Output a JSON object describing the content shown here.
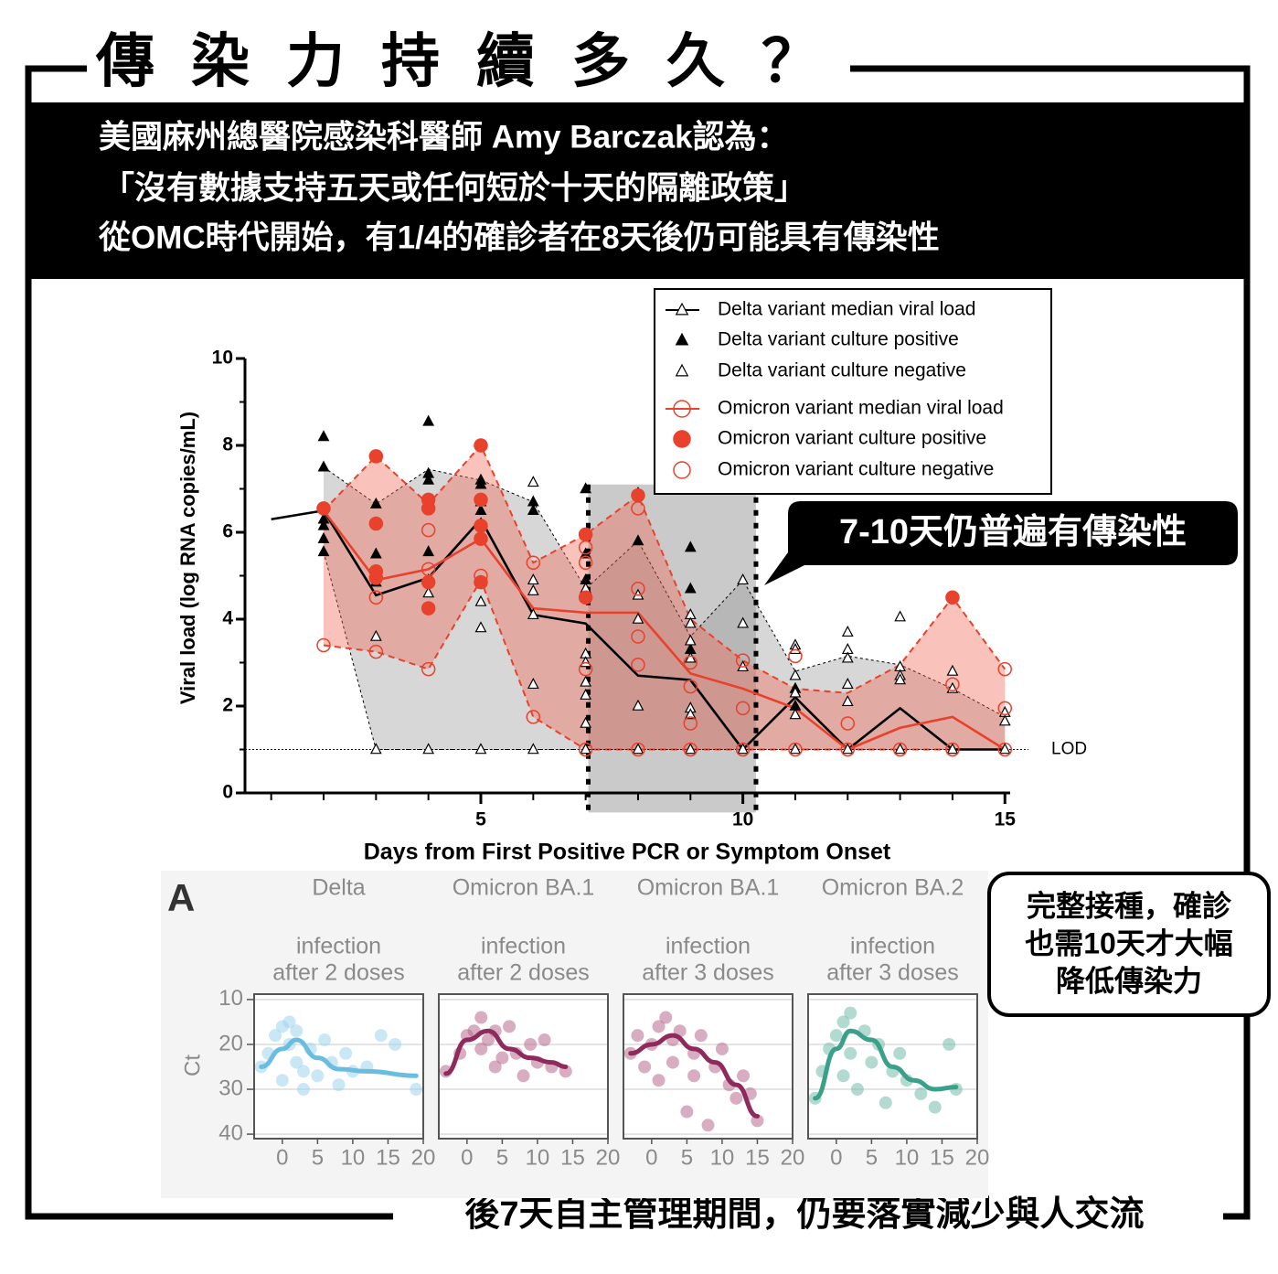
{
  "header": {
    "title": "傳染力持續多久？",
    "lines": [
      "美國麻州總醫院感染科醫師 Amy Barczak認為：",
      "「沒有數據支持五天或任何短於十天的隔離政策」",
      "從OMC時代開始，有1/4的確診者在8天後仍可能具有傳染性"
    ]
  },
  "callouts": {
    "main": "7-10天仍普遍有傳染性",
    "side": [
      "完整接種，確診",
      "也需10天才大幅",
      "降低傳染力"
    ]
  },
  "footer": "後7天自主管理期間，仍要落實減少與人交流",
  "chart_data": [
    {
      "type": "line",
      "xlabel": "Days from First Positive PCR or Symptom Onset",
      "ylabel": "Viral load (log RNA copies/mL)",
      "xlim": [
        0.5,
        15.1
      ],
      "ylim": [
        0,
        10
      ],
      "xticks": [
        5,
        10,
        15
      ],
      "xminorticks": [
        1,
        2,
        3,
        4,
        5,
        6,
        7,
        8,
        9,
        10,
        11,
        12,
        13,
        14,
        15
      ],
      "yticks": [
        0,
        2,
        4,
        6,
        8,
        10
      ],
      "yminorticks": [
        1,
        3,
        5,
        7,
        9
      ],
      "lod": {
        "value": 1,
        "label": "LOD"
      },
      "highlight": {
        "xlim": [
          7.05,
          10.25
        ],
        "ylim": [
          -0.45,
          7.1
        ],
        "color": "#8a8a8a"
      },
      "bands": [
        {
          "color": "#9a9a9a",
          "edge": "#000000",
          "x": [
            2,
            3,
            4,
            5,
            6,
            7,
            8,
            9,
            10,
            11,
            12,
            13,
            14,
            15
          ],
          "upper": [
            7.5,
            6.65,
            7.45,
            7.2,
            6.7,
            4.7,
            5.8,
            3.6,
            4.9,
            2.8,
            3.15,
            2.95,
            2.4,
            1.75
          ],
          "lower": [
            5.55,
            1,
            1,
            1,
            1,
            1,
            1,
            1,
            1,
            1,
            1,
            1,
            1,
            1
          ]
        },
        {
          "color": "#ef6a55",
          "edge": "#e8412c",
          "x": [
            2,
            3,
            4,
            5,
            6,
            7,
            8,
            9,
            10,
            11,
            12,
            13,
            14,
            15
          ],
          "upper": [
            6.5,
            7.75,
            6.65,
            8.0,
            5.3,
            5.95,
            6.85,
            4.0,
            3.05,
            2.4,
            2.3,
            2.95,
            4.5,
            2.85
          ],
          "lower": [
            3.4,
            3.25,
            2.85,
            4.9,
            1.75,
            1,
            1,
            1,
            1,
            1,
            1,
            1,
            1,
            1
          ]
        }
      ],
      "series": [
        {
          "name": "Delta variant median viral load",
          "style": "line",
          "marker": "triangle-open",
          "color": "#000000",
          "x": [
            1,
            2,
            3,
            4,
            5,
            6,
            7,
            8,
            9,
            10,
            11,
            12,
            13,
            14,
            15
          ],
          "values": [
            6.3,
            6.5,
            4.55,
            4.95,
            6.3,
            4.1,
            3.9,
            2.7,
            2.6,
            1,
            2.2,
            1,
            1.95,
            1,
            1
          ]
        },
        {
          "name": "Delta variant culture positive",
          "style": "points",
          "marker": "triangle-filled",
          "color": "#000000",
          "x": [
            2,
            2,
            2,
            2,
            2,
            2,
            3,
            3,
            3,
            4,
            4,
            4,
            4,
            4,
            5,
            5,
            5,
            5,
            6,
            6,
            7,
            7,
            7,
            7,
            7,
            8,
            8,
            9,
            9,
            9,
            11,
            11
          ],
          "values": [
            8.2,
            7.5,
            6.3,
            6.15,
            5.85,
            5.55,
            6.65,
            5.5,
            4.85,
            8.55,
            7.35,
            7.2,
            5.55,
            4.9,
            7.2,
            7.1,
            6.7,
            6.5,
            6.7,
            6.5,
            7.0,
            5.95,
            5.5,
            4.9,
            4.5,
            6.9,
            5.8,
            5.65,
            4.7,
            3.3,
            2.4,
            2.0
          ]
        },
        {
          "name": "Delta variant culture negative",
          "style": "points",
          "marker": "triangle-open",
          "color": "#000000",
          "x": [
            3,
            3,
            4,
            4,
            5,
            5,
            5,
            6,
            6,
            6,
            6,
            6,
            6,
            7,
            7,
            7,
            7,
            7,
            7,
            7,
            8,
            8,
            8,
            8,
            9,
            9,
            9,
            9,
            9,
            9,
            9,
            10,
            10,
            10,
            10,
            11,
            11,
            11,
            11,
            11,
            11,
            12,
            12,
            12,
            12,
            12,
            12,
            13,
            13,
            13,
            13,
            13,
            14,
            14,
            14,
            15,
            15,
            15
          ],
          "values": [
            3.6,
            1,
            4.6,
            1,
            4.4,
            3.8,
            1,
            7.15,
            4.9,
            4.65,
            4.1,
            2.5,
            1,
            4.7,
            3.2,
            3.0,
            2.55,
            2.25,
            1.6,
            1,
            4.55,
            4.0,
            2.0,
            1,
            4.1,
            3.9,
            3.5,
            3.1,
            1.95,
            1.8,
            1,
            4.9,
            3.9,
            2.9,
            1,
            3.4,
            3.3,
            2.7,
            2.3,
            1.8,
            1,
            3.7,
            3.3,
            3.1,
            2.5,
            2.1,
            1,
            4.05,
            2.9,
            2.7,
            2.6,
            1,
            2.8,
            2.4,
            1,
            1.85,
            1.65,
            1
          ]
        },
        {
          "name": "Omicron variant median viral load",
          "style": "line",
          "marker": "circle-open",
          "color": "#e8412c",
          "x": [
            2,
            3,
            4,
            5,
            6,
            7,
            8,
            9,
            10,
            11,
            12,
            13,
            14,
            15
          ],
          "values": [
            6.5,
            4.9,
            5.15,
            5.85,
            4.25,
            4.15,
            4.15,
            2.75,
            2.4,
            1.95,
            1,
            1.5,
            1.75,
            1
          ]
        },
        {
          "name": "Omicron variant culture positive",
          "style": "points",
          "marker": "circle-filled",
          "color": "#e8412c",
          "x": [
            2,
            3,
            3,
            3,
            3,
            4,
            4,
            4,
            4,
            5,
            5,
            5,
            5,
            5,
            7,
            7,
            8,
            14
          ],
          "values": [
            6.55,
            7.75,
            6.2,
            5.1,
            4.95,
            6.75,
            6.55,
            4.85,
            4.25,
            8.0,
            6.75,
            6.15,
            5.85,
            4.85,
            5.95,
            4.5,
            6.85,
            4.5
          ]
        },
        {
          "name": "Omicron variant culture negative",
          "style": "points",
          "marker": "circle-open",
          "color": "#e8412c",
          "x": [
            2,
            3,
            3,
            4,
            4,
            4,
            5,
            6,
            6,
            7,
            7,
            7,
            7,
            8,
            8,
            8,
            8,
            8,
            9,
            9,
            9,
            9,
            10,
            10,
            10,
            11,
            11,
            12,
            12,
            13,
            14,
            14,
            15,
            15,
            15
          ],
          "values": [
            3.4,
            4.5,
            3.25,
            6.05,
            5.15,
            2.85,
            5.0,
            5.3,
            1.75,
            5.65,
            5.3,
            2.85,
            1,
            6.55,
            4.7,
            3.6,
            2.95,
            1,
            3.0,
            2.45,
            1.6,
            1,
            3.05,
            1.95,
            1,
            3.15,
            1,
            1.6,
            1,
            1,
            2.5,
            1,
            2.85,
            1.95,
            1
          ]
        }
      ]
    },
    {
      "type": "scatter",
      "panel": "A",
      "ylabel": "Ct",
      "title": "Delta",
      "subtitle": [
        "infection",
        "after 2 doses"
      ],
      "xlim": [
        -4,
        20
      ],
      "ylim": [
        41,
        8.8
      ],
      "xticks": [
        0,
        5,
        10,
        15,
        20
      ],
      "yticks": [
        10,
        20,
        30,
        40
      ],
      "ytick_labels": true,
      "series": [
        {
          "style": "points",
          "color": "#9fd3ee",
          "x": [
            -3,
            -2,
            -1,
            0,
            0,
            1,
            1,
            2,
            2,
            3,
            3,
            4,
            5,
            6,
            7,
            8,
            9,
            10,
            12,
            14,
            16,
            19
          ],
          "values": [
            25,
            22,
            18,
            16,
            28,
            20,
            15,
            24,
            17,
            26,
            30,
            21,
            27,
            19,
            24,
            29,
            22,
            26,
            25,
            18,
            20,
            30
          ]
        },
        {
          "style": "line",
          "color": "#6bbde0",
          "x": [
            -3,
            0,
            2,
            5,
            8,
            12,
            19
          ],
          "values": [
            25,
            21,
            19,
            23,
            25.5,
            26,
            27
          ]
        }
      ]
    },
    {
      "type": "scatter",
      "title": "Omicron BA.1",
      "subtitle": [
        "infection",
        "after 2 doses"
      ],
      "xlim": [
        -4,
        20
      ],
      "ylim": [
        41,
        8.8
      ],
      "xticks": [
        0,
        5,
        10,
        15,
        20
      ],
      "yticks": [
        10,
        20,
        30,
        40
      ],
      "ytick_labels": false,
      "series": [
        {
          "style": "points",
          "color": "#b8678e",
          "x": [
            -3,
            -1,
            0,
            1,
            2,
            2,
            3,
            4,
            4,
            5,
            6,
            7,
            8,
            9,
            10,
            11,
            12,
            14
          ],
          "values": [
            26,
            22,
            18,
            17,
            21,
            14,
            19,
            17,
            25,
            23,
            16,
            22,
            27,
            20,
            24,
            19,
            25,
            26
          ]
        },
        {
          "style": "line",
          "color": "#8e2a5c",
          "x": [
            -3,
            0,
            3,
            6,
            9,
            12,
            14
          ],
          "values": [
            26.5,
            19,
            17,
            21,
            23,
            24,
            25
          ]
        }
      ]
    },
    {
      "type": "scatter",
      "title": "Omicron BA.1",
      "subtitle": [
        "infection",
        "after 3 doses"
      ],
      "xlim": [
        -4,
        20
      ],
      "ylim": [
        41,
        8.8
      ],
      "xticks": [
        0,
        5,
        10,
        15,
        20
      ],
      "yticks": [
        10,
        20,
        30,
        40
      ],
      "ytick_labels": false,
      "series": [
        {
          "style": "points",
          "color": "#b8678e",
          "x": [
            -3,
            -2,
            -1,
            0,
            1,
            1,
            2,
            3,
            3,
            4,
            5,
            6,
            6,
            7,
            8,
            9,
            10,
            11,
            12,
            13,
            14,
            15
          ],
          "values": [
            22,
            18,
            25,
            20,
            16,
            28,
            14,
            19,
            24,
            17,
            35,
            22,
            27,
            18,
            38,
            25,
            21,
            29,
            32,
            27,
            31,
            37
          ]
        },
        {
          "style": "line",
          "color": "#8e2a5c",
          "x": [
            -3,
            0,
            3,
            6,
            9,
            12,
            15
          ],
          "values": [
            22,
            20,
            18,
            21,
            24,
            29,
            36
          ]
        }
      ]
    },
    {
      "type": "scatter",
      "title": "Omicron BA.2",
      "subtitle": [
        "infection",
        "after 3 doses"
      ],
      "xlim": [
        -4,
        20
      ],
      "ylim": [
        41,
        8.8
      ],
      "xticks": [
        0,
        5,
        10,
        15,
        20
      ],
      "yticks": [
        10,
        20,
        30,
        40
      ],
      "ytick_labels": false,
      "series": [
        {
          "style": "points",
          "color": "#74bcaa",
          "x": [
            -3,
            -2,
            -1,
            0,
            1,
            1,
            2,
            2,
            3,
            4,
            5,
            6,
            7,
            8,
            9,
            10,
            12,
            14,
            16,
            17
          ],
          "values": [
            32,
            26,
            21,
            18,
            15,
            27,
            13,
            22,
            30,
            17,
            24,
            20,
            33,
            26,
            22,
            28,
            31,
            34,
            20,
            30
          ]
        },
        {
          "style": "line",
          "color": "#3aa08a",
          "x": [
            -3,
            0,
            2,
            5,
            8,
            11,
            14,
            17
          ],
          "values": [
            32,
            21,
            17,
            19,
            25,
            28,
            30,
            29.5
          ]
        }
      ]
    }
  ]
}
